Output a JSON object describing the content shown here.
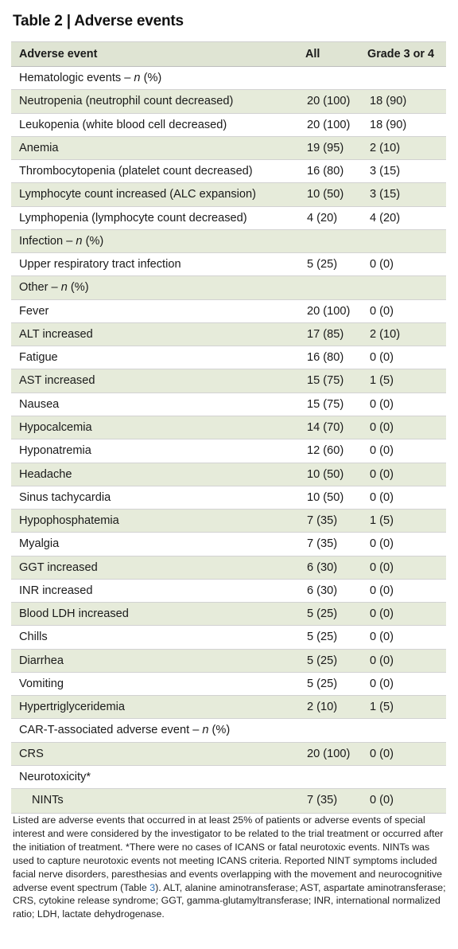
{
  "title": "Table 2 | Adverse events",
  "columns": [
    "Adverse event",
    "All",
    "Grade 3 or 4"
  ],
  "rows": [
    {
      "label": "Hematologic events – ",
      "label_italic": "n",
      "label_after": " (%)",
      "all": "",
      "grade": "",
      "shade": false,
      "section": true
    },
    {
      "label": "Neutropenia (neutrophil count decreased)",
      "all": "20 (100)",
      "grade": "18 (90)",
      "shade": true
    },
    {
      "label": "Leukopenia (white blood cell decreased)",
      "all": "20 (100)",
      "grade": "18 (90)",
      "shade": false
    },
    {
      "label": "Anemia",
      "all": "19 (95)",
      "grade": "2 (10)",
      "shade": true
    },
    {
      "label": "Thrombocytopenia (platelet count decreased)",
      "all": "16 (80)",
      "grade": "3 (15)",
      "shade": false
    },
    {
      "label": "Lymphocyte count increased (ALC expansion)",
      "all": "10 (50)",
      "grade": "3 (15)",
      "shade": true
    },
    {
      "label": "Lymphopenia (lymphocyte count decreased)",
      "all": "4 (20)",
      "grade": "4 (20)",
      "shade": false
    },
    {
      "label": "Infection – ",
      "label_italic": "n",
      "label_after": " (%)",
      "all": "",
      "grade": "",
      "shade": true,
      "section": true
    },
    {
      "label": "Upper respiratory tract infection",
      "all": "5 (25)",
      "grade": "0 (0)",
      "shade": false
    },
    {
      "label": "Other – ",
      "label_italic": "n",
      "label_after": " (%)",
      "all": "",
      "grade": "",
      "shade": true,
      "section": true
    },
    {
      "label": "Fever",
      "all": "20 (100)",
      "grade": "0 (0)",
      "shade": false
    },
    {
      "label": "ALT increased",
      "all": "17 (85)",
      "grade": "2 (10)",
      "shade": true
    },
    {
      "label": "Fatigue",
      "all": "16 (80)",
      "grade": "0 (0)",
      "shade": false
    },
    {
      "label": "AST increased",
      "all": "15 (75)",
      "grade": "1 (5)",
      "shade": true
    },
    {
      "label": "Nausea",
      "all": "15 (75)",
      "grade": "0 (0)",
      "shade": false
    },
    {
      "label": "Hypocalcemia",
      "all": "14 (70)",
      "grade": "0 (0)",
      "shade": true
    },
    {
      "label": "Hyponatremia",
      "all": "12 (60)",
      "grade": "0 (0)",
      "shade": false
    },
    {
      "label": "Headache",
      "all": "10 (50)",
      "grade": "0 (0)",
      "shade": true
    },
    {
      "label": "Sinus tachycardia",
      "all": "10 (50)",
      "grade": "0 (0)",
      "shade": false
    },
    {
      "label": "Hypophosphatemia",
      "all": "7 (35)",
      "grade": "1 (5)",
      "shade": true
    },
    {
      "label": "Myalgia",
      "all": "7 (35)",
      "grade": "0 (0)",
      "shade": false
    },
    {
      "label": "GGT increased",
      "all": "6 (30)",
      "grade": "0 (0)",
      "shade": true
    },
    {
      "label": "INR increased",
      "all": "6 (30)",
      "grade": "0 (0)",
      "shade": false
    },
    {
      "label": "Blood LDH increased",
      "all": "5 (25)",
      "grade": "0 (0)",
      "shade": true
    },
    {
      "label": "Chills",
      "all": "5 (25)",
      "grade": "0 (0)",
      "shade": false
    },
    {
      "label": "Diarrhea",
      "all": "5 (25)",
      "grade": "0 (0)",
      "shade": true
    },
    {
      "label": "Vomiting",
      "all": "5 (25)",
      "grade": "0 (0)",
      "shade": false
    },
    {
      "label": "Hypertriglyceridemia",
      "all": "2 (10)",
      "grade": "1 (5)",
      "shade": true
    },
    {
      "label": "CAR-T-associated adverse event – ",
      "label_italic": "n",
      "label_after": " (%)",
      "all": "",
      "grade": "",
      "shade": false,
      "section": true
    },
    {
      "label": "CRS",
      "all": "20 (100)",
      "grade": "0 (0)",
      "shade": true
    },
    {
      "label": "Neurotoxicity*",
      "all": "",
      "grade": "",
      "shade": false,
      "section": true
    },
    {
      "label": "NINTs",
      "all": "7 (35)",
      "grade": "0 (0)",
      "shade": true,
      "indent": true
    }
  ],
  "notes": {
    "before_ref": "Listed are adverse events that occurred in at least 25% of patients or adverse events of special interest and were considered by the investigator to be related to the trial treatment or occurred after the initiation of treatment. *There were no cases of ICANS or fatal neurotoxic events. NINTs was used to capture neurotoxic events not meeting ICANS criteria. Reported NINT symptoms included facial nerve disorders, paresthesias and events overlapping with the movement and neurocognitive adverse event spectrum (Table ",
    "ref": "3",
    "after_ref": "). ALT, alanine aminotransferase; AST, aspartate aminotransferase; CRS, cytokine release syndrome; GGT, gamma-glutamyltransferase; INR, international normalized ratio; LDH, lactate dehydrogenase."
  }
}
